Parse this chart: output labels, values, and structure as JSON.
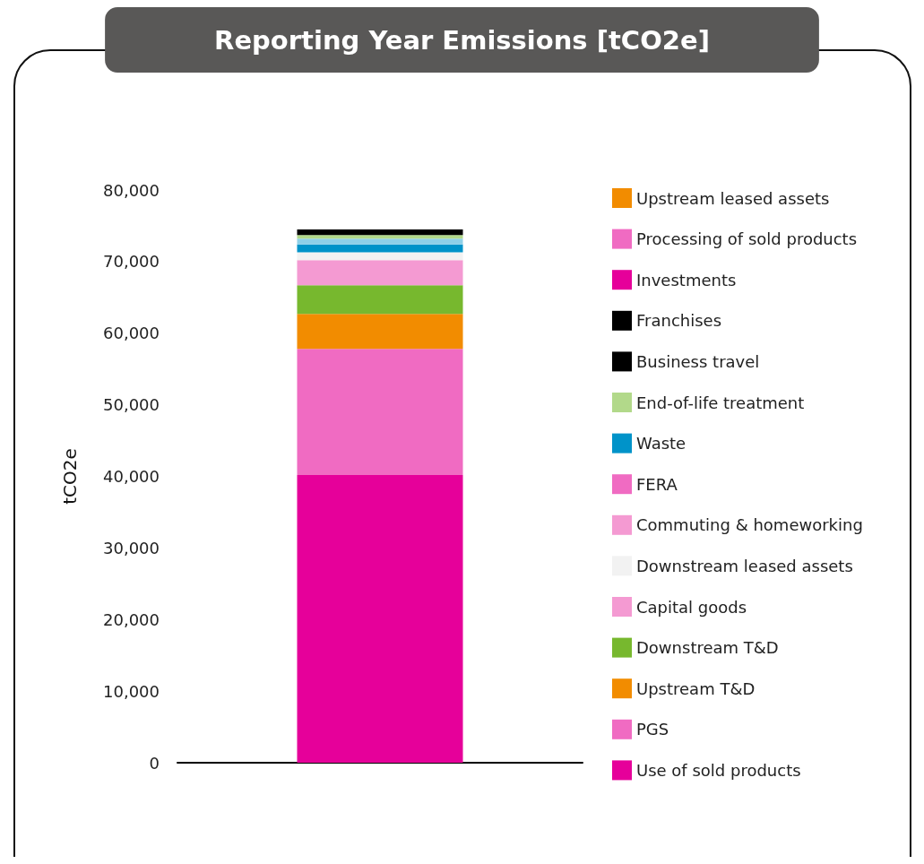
{
  "chart_data": {
    "type": "bar",
    "title": "Reporting Year Emissions [tCO2e]",
    "ylabel": "tCO2e",
    "categories": [
      null
    ],
    "stacked": true,
    "series": [
      {
        "name": "Use of sold products",
        "color": "#e6009a",
        "values": [
          40200
        ]
      },
      {
        "name": "PGS",
        "color": "#f06bc2",
        "values": [
          17600
        ]
      },
      {
        "name": "Upstream T&D",
        "color": "#f28c00",
        "values": [
          4900
        ]
      },
      {
        "name": "Downstream T&D",
        "color": "#77b82e",
        "values": [
          4000
        ]
      },
      {
        "name": "Capital goods",
        "color": "#f49ad2",
        "values": [
          3500
        ]
      },
      {
        "name": "Downstream leased assets",
        "color": "#f2f2f2",
        "values": [
          1100
        ]
      },
      {
        "name": "Commuting & homeworking",
        "color": "#f49ad2",
        "values": [
          0
        ]
      },
      {
        "name": "FERA",
        "color": "#f06bc2",
        "values": [
          0
        ]
      },
      {
        "name": "Waste",
        "color": "#0093c9",
        "values": [
          1100
        ]
      },
      {
        "color": "#8fd0e8",
        "values": [
          800
        ]
      },
      {
        "name": "End-of-life treatment",
        "color": "#b2d98a",
        "values": [
          500
        ]
      },
      {
        "name": "Business travel",
        "color": "#000000",
        "values": [
          800
        ]
      },
      {
        "name": "Franchises",
        "color": "#000000",
        "values": [
          0
        ]
      },
      {
        "name": "Investments",
        "color": "#e6009a",
        "values": [
          0
        ]
      },
      {
        "name": "Processing of sold products",
        "color": "#f06bc2",
        "values": [
          0
        ]
      },
      {
        "name": "Upstream leased assets",
        "color": "#f28c00",
        "values": [
          0
        ]
      }
    ],
    "ylim": [
      0,
      80000
    ],
    "yticks": [
      0,
      {
        "value": 10000,
        "label": "10,000"
      },
      {
        "value": 20000,
        "label": "20,000"
      },
      {
        "value": 30000,
        "label": "30,000"
      },
      {
        "value": 40000,
        "label": "40,000"
      },
      {
        "value": 50000,
        "label": "50,000"
      },
      {
        "value": 60000,
        "label": "60,000"
      },
      {
        "value": 70000,
        "label": "70,000"
      },
      {
        "value": 80000,
        "label": "80,000"
      }
    ],
    "grid": false,
    "legend": "right"
  }
}
